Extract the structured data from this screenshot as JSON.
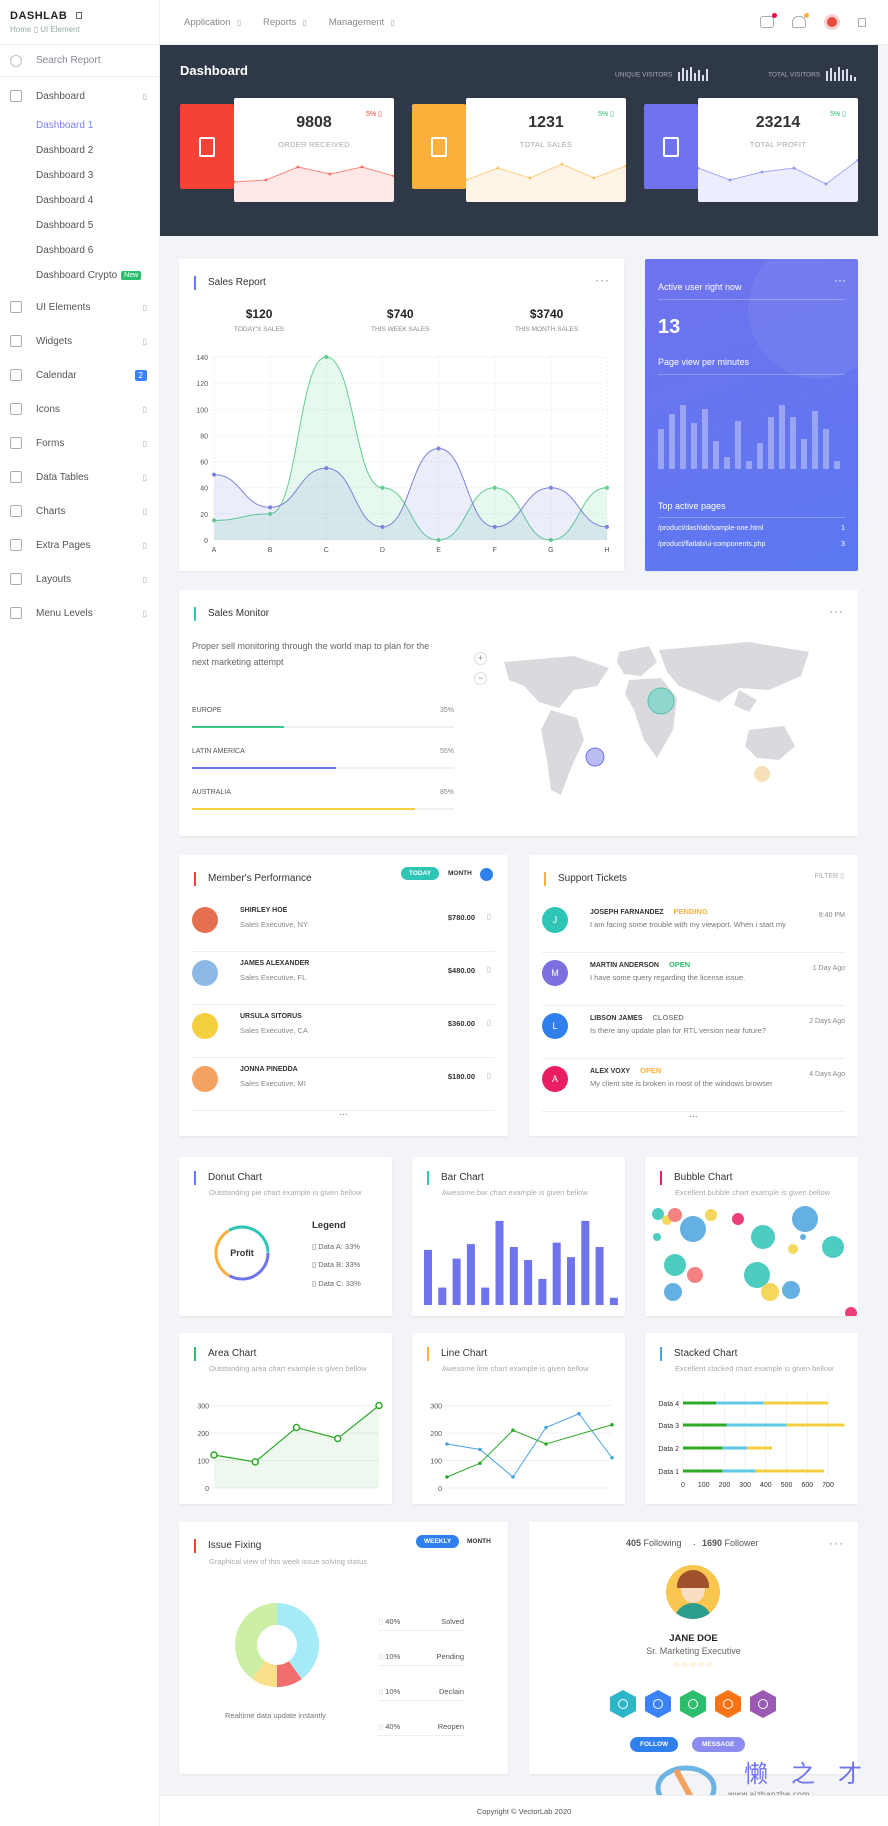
{
  "brand": {
    "name": "DASHLAB",
    "breadcrumb": "Home ▯ UI Element"
  },
  "sidebar": {
    "search_placeholder": "Search Report",
    "dashboard_label": "Dashboard",
    "dashboards": [
      "Dashboard 1",
      "Dashboard 2",
      "Dashboard 3",
      "Dashboard 4",
      "Dashboard 5",
      "Dashboard 6",
      "Dashboard Crypto"
    ],
    "new_badge": "New",
    "items": [
      {
        "label": "UI Elements",
        "icon": "layers-icon"
      },
      {
        "label": "Widgets",
        "icon": "widgets-icon"
      },
      {
        "label": "Calendar",
        "icon": "calendar-icon",
        "badge": "2"
      },
      {
        "label": "Icons",
        "icon": "megaphone-icon"
      },
      {
        "label": "Forms",
        "icon": "form-icon"
      },
      {
        "label": "Data Tables",
        "icon": "table-icon"
      },
      {
        "label": "Charts",
        "icon": "chart-icon"
      },
      {
        "label": "Extra Pages",
        "icon": "pages-icon"
      },
      {
        "label": "Layouts",
        "icon": "layout-icon"
      },
      {
        "label": "Menu Levels",
        "icon": "menu-levels-icon"
      }
    ]
  },
  "topbar": {
    "menu": [
      "Application",
      "Reports",
      "Management"
    ]
  },
  "hero": {
    "title": "Dashboard",
    "unique_visitors": "UNIQUE VISITORS",
    "total_visitors": "TOTAL VISITORS",
    "stats": [
      {
        "value": "9808",
        "label": "ORDER RECEIVED",
        "pct": "5%",
        "color": "#f44336",
        "pct_color": "#f44336",
        "spark": [
          20,
          22,
          35,
          28,
          35,
          26
        ]
      },
      {
        "value": "1231",
        "label": "TOTAL SALES",
        "pct": "5%",
        "color": "#fbb03b",
        "pct_color": "#2dbd6e",
        "spark": [
          22,
          34,
          24,
          38,
          24,
          36
        ]
      },
      {
        "value": "23214",
        "label": "TOTAL PROFIT",
        "pct": "5%",
        "color": "#6f73ee",
        "pct_color": "#2dbd6e",
        "spark": [
          34,
          22,
          30,
          34,
          18,
          42
        ]
      }
    ]
  },
  "sales_report": {
    "title": "Sales Report",
    "kpis": [
      {
        "value": "$120",
        "label": "TODAY'S SALES"
      },
      {
        "value": "$740",
        "label": "THIS WEEK SALES"
      },
      {
        "value": "$3740",
        "label": "THIS MONTH SALES"
      }
    ]
  },
  "chart_data": [
    {
      "type": "line",
      "categories": [
        "A",
        "B",
        "C",
        "D",
        "E",
        "F",
        "G",
        "H"
      ],
      "yticks": [
        0,
        20,
        40,
        60,
        80,
        100,
        120,
        140
      ],
      "ylim": [
        0,
        140
      ],
      "series": [
        {
          "values": [
            15,
            20,
            140,
            40,
            0,
            40,
            0,
            40
          ],
          "color": "#5fcf8f"
        },
        {
          "values": [
            50,
            25,
            55,
            10,
            70,
            10,
            40,
            10
          ],
          "color": "#7c83db"
        }
      ]
    },
    {
      "type": "bar",
      "values": [
        38,
        12,
        32,
        42,
        12,
        58,
        40,
        31,
        18,
        43,
        33,
        58,
        40,
        5
      ],
      "color": "#6f73ee"
    },
    {
      "type": "line",
      "categories": [
        0,
        1,
        2,
        3,
        4
      ],
      "yticks": [
        0,
        100,
        200,
        300
      ],
      "ylim": [
        0,
        320
      ],
      "values": [
        120,
        95,
        220,
        180,
        300
      ],
      "color": "#2ea92a"
    },
    {
      "type": "line",
      "yticks": [
        0,
        100,
        200,
        300
      ],
      "ylim": [
        0,
        320
      ],
      "series": [
        {
          "values": [
            160,
            140,
            40,
            220,
            270,
            110
          ],
          "color": "#4aa3df",
          "x": [
            0,
            1,
            2,
            3,
            4,
            5
          ]
        },
        {
          "values": [
            40,
            90,
            210,
            160,
            230
          ],
          "color": "#2ea92a",
          "x": [
            0,
            1,
            2,
            3,
            5
          ]
        }
      ]
    },
    {
      "type": "bar",
      "orientation": "horizontal",
      "categories": [
        "Data 1",
        "Data 2",
        "Data 3",
        "Data 4"
      ],
      "xticks": [
        0,
        100,
        200,
        300,
        400,
        500,
        600,
        700
      ],
      "series": [
        {
          "values": [
            190,
            190,
            210,
            160
          ],
          "color": "#2ea92a"
        },
        {
          "values": [
            160,
            120,
            290,
            230
          ],
          "color": "#5ec8e5"
        },
        {
          "values": [
            330,
            120,
            280,
            310
          ],
          "color": "#f4d03f"
        }
      ]
    },
    {
      "type": "pie",
      "title": "Issue Fixing",
      "categories": [
        "Solved",
        "Pending",
        "Declain",
        "Reopen"
      ],
      "values": [
        40,
        10,
        10,
        40
      ],
      "colors": [
        "#a5eaf7",
        "#f26d6d",
        "#fbe08a",
        "#cdeea5"
      ]
    }
  ],
  "map": {
    "title": "Sales Monitor",
    "desc": "Proper sell monitoring through the world map to plan for the next marketing attempt",
    "rows": [
      {
        "name": "EUROPE",
        "pct": "35%",
        "value": 35,
        "color": "#3cc68a"
      },
      {
        "name": "LATIN AMERICA",
        "pct": "55%",
        "value": 55,
        "color": "#6f73ee"
      },
      {
        "name": "AUSTRALIA",
        "pct": "85%",
        "value": 85,
        "color": "#f4d03f"
      }
    ],
    "zoom_in": "+",
    "zoom_out": "−"
  },
  "active": {
    "title": "Active user right now",
    "count": "13",
    "per_minute": "Page view per minutes",
    "bars": [
      40,
      55,
      64,
      46,
      60,
      28,
      12,
      48,
      8,
      26,
      52,
      64,
      52,
      30,
      58,
      40,
      8
    ],
    "top_pages_title": "Top active pages",
    "pages": [
      {
        "url": "/product/dashlab/sample-one.html",
        "count": "1"
      },
      {
        "url": "/product/flatlab/ui-components.php",
        "count": "3"
      }
    ]
  },
  "members": {
    "title": "Member's Performance",
    "today": "TODAY",
    "month": "MONTH",
    "rows": [
      {
        "name": "SHIRLEY HOE",
        "role": "Sales Executive, NY",
        "amount": "$780.00",
        "color": "#e76f51"
      },
      {
        "name": "JAMES ALEXANDER",
        "role": "Sales Executive, FL",
        "amount": "$480.00",
        "color": "#8eb8e5"
      },
      {
        "name": "URSULA SITORUS",
        "role": "Sales Executive, CA",
        "amount": "$360.00",
        "color": "#f4d03f"
      },
      {
        "name": "JONNA PINEDDA",
        "role": "Sales Executive, MI",
        "amount": "$180.00",
        "color": "#f4a261"
      }
    ],
    "more": "..."
  },
  "tickets": {
    "title": "Support Tickets",
    "filter": "FILTER",
    "rows": [
      {
        "initial": "J",
        "name": "JOSEPH FARNANDEZ",
        "status": "PENDING",
        "status_color": "#fbb03b",
        "msg": "I am facing some trouble with my viewport. When i start my",
        "time": "8:40 PM",
        "color": "#2ec4b6"
      },
      {
        "initial": "M",
        "name": "MARTIN ANDERSON",
        "status": "OPEN",
        "status_color": "#2dbd6e",
        "msg": "I have some query regarding the license issue.",
        "time": "1 Day Ago",
        "color": "#7c6fe0"
      },
      {
        "initial": "L",
        "name": "LIBSON JAMES",
        "status": "CLOSED",
        "status_color": "#888888",
        "msg": "Is there any update plan for RTL version near future?",
        "time": "2 Days Ago",
        "color": "#2f80ed"
      },
      {
        "initial": "A",
        "name": "ALEX VOXY",
        "status": "OPEN",
        "status_color": "#fbb03b",
        "msg": "My client site is broken in most of the windows browser",
        "time": "4 Days Ago",
        "color": "#e91e63"
      }
    ],
    "more": "..."
  },
  "donut": {
    "title": "Donut Chart",
    "sub": "Outstanding pie chart example is given bellow",
    "center": "Profit",
    "legend_title": "Legend",
    "legend": [
      "Data A: 33%",
      "Data B: 33%",
      "Data C: 33%"
    ]
  },
  "bar_chart": {
    "title": "Bar Chart",
    "sub": "Awesome bar chart example is given bellow"
  },
  "bubble": {
    "title": "Bubble Chart",
    "sub": "Excellent bubble chart example is given bellow"
  },
  "area_chart": {
    "title": "Area Chart",
    "sub": "Outstanding area chart example is given bellow"
  },
  "line_chart": {
    "title": "Line Chart",
    "sub": "Awesome line chart example is given bellow"
  },
  "stacked": {
    "title": "Stacked Chart",
    "sub": "Excellent stacked chart example is given bellow"
  },
  "issue": {
    "title": "Issue Fixing",
    "sub": "Graphical view of this week issue solving status",
    "weekly": "WEEKLY",
    "month": "MONTH",
    "caption": "Realtime data update instantly",
    "rows": [
      {
        "pct": "40%",
        "label": "Solved"
      },
      {
        "pct": "10%",
        "label": "Pending"
      },
      {
        "pct": "10%",
        "label": "Declain"
      },
      {
        "pct": "40%",
        "label": "Reopen"
      }
    ]
  },
  "profile": {
    "following_count": "405",
    "following": "Following",
    "follower_count": "1690",
    "follower": "Follower",
    "name": "JANE DOE",
    "role": "Sr. Marketing Executive",
    "stars": "☆☆☆☆☆",
    "follow": "FOLLOW",
    "message": "MESSAGE",
    "badges": [
      {
        "icon": "paw-icon",
        "color": "#2eb6c8"
      },
      {
        "icon": "refresh-icon",
        "color": "#3b82f6"
      },
      {
        "icon": "accessible-icon",
        "color": "#2dbd6e"
      },
      {
        "icon": "bolt-icon",
        "color": "#f97316"
      },
      {
        "icon": "rocket-icon",
        "color": "#9b59b6"
      }
    ]
  },
  "footer": {
    "copyright": "Copyright © VectorLab 2020"
  }
}
